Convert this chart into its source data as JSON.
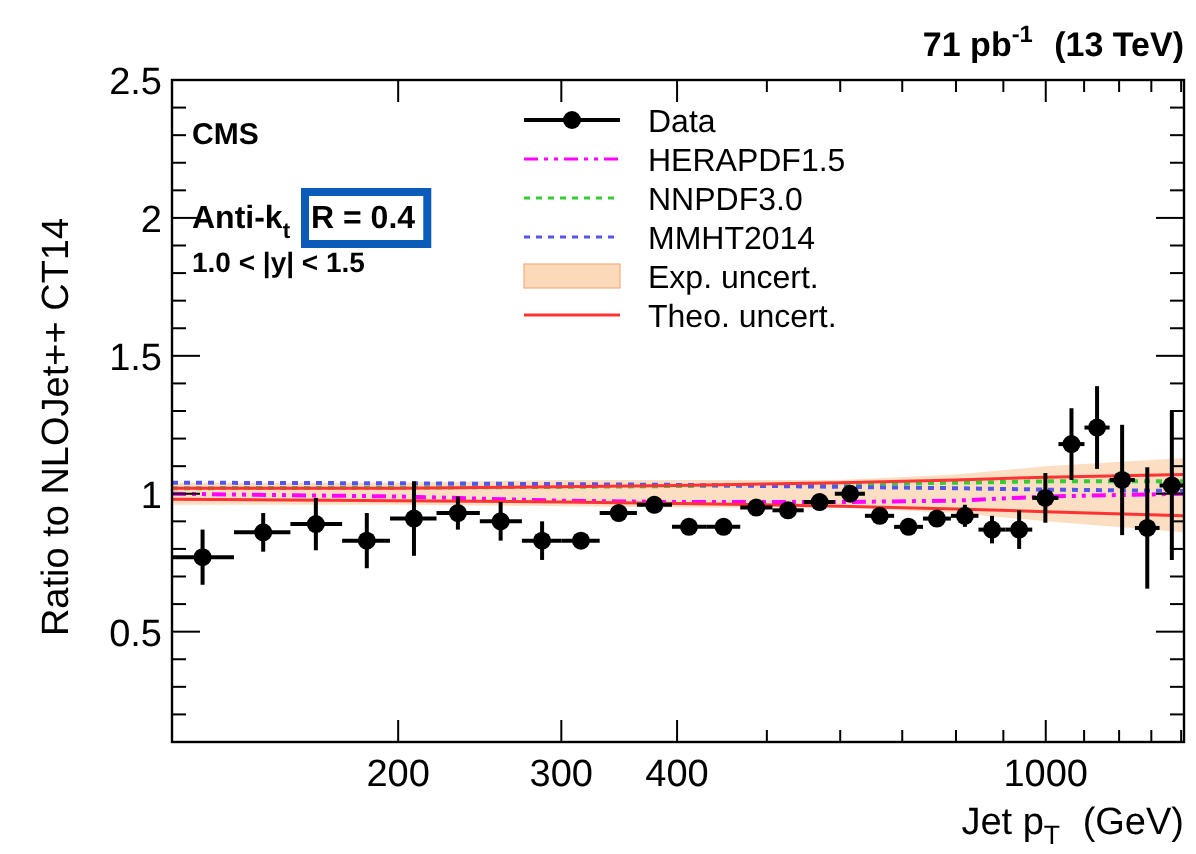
{
  "chart_data": {
    "type": "scatter",
    "title": "71 pb$^{-1}$ (13 TeV)",
    "xlabel": "Jet p$_{T}$ (GeV)",
    "ylabel": "Ratio to NLOJet++ CT14",
    "annotations": [
      "CMS",
      "Anti-k$_{t}$ R = 0.4",
      "1.0 < |y| < 1.5"
    ],
    "log": "x",
    "xlim": [
      114,
      1410
    ],
    "ylim": [
      0.1,
      2.5
    ],
    "xticks": [
      200,
      300,
      400,
      {
        "value": 500,
        "label": null
      },
      {
        "value": 600,
        "label": null
      },
      {
        "value": 700,
        "label": null
      },
      {
        "value": 800,
        "label": null
      },
      {
        "value": 900,
        "label": null
      },
      1000,
      {
        "value": 1100,
        "label": null
      },
      {
        "value": 1200,
        "label": null
      },
      {
        "value": 1300,
        "label": null
      },
      {
        "value": 1400,
        "label": null
      }
    ],
    "yticks": [
      {
        "value": 0.2,
        "label": null
      },
      {
        "value": 0.3,
        "label": null
      },
      {
        "value": 0.4,
        "label": null
      },
      0.5,
      {
        "value": 0.6,
        "label": null
      },
      {
        "value": 0.7,
        "label": null
      },
      {
        "value": 0.8,
        "label": null
      },
      {
        "value": 0.9,
        "label": null
      },
      1,
      {
        "value": 1.1,
        "label": null
      },
      {
        "value": 1.2,
        "label": null
      },
      {
        "value": 1.3,
        "label": null
      },
      {
        "value": 1.4,
        "label": null
      },
      1.5,
      {
        "value": 1.6,
        "label": null
      },
      {
        "value": 1.7,
        "label": null
      },
      {
        "value": 1.8,
        "label": null
      },
      {
        "value": 1.9,
        "label": null
      },
      2,
      {
        "value": 2.1,
        "label": null
      },
      {
        "value": 2.2,
        "label": null
      },
      {
        "value": 2.3,
        "label": null
      },
      {
        "value": 2.4,
        "label": null
      },
      2.5
    ],
    "grid": false,
    "legend": "top right",
    "series": [
      {
        "name": "Data",
        "color": "#000000",
        "marker": "circle",
        "x": [
          123,
          143,
          163,
          185,
          208,
          232,
          258,
          286,
          315,
          346,
          378,
          412,
          449,
          487,
          527,
          570,
          615,
          662,
          711,
          763,
          818,
          875,
          936,
          999,
          1066,
          1136,
          1209,
          1287,
          1368
        ],
        "values": [
          0.77,
          0.86,
          0.89,
          0.83,
          0.91,
          0.93,
          0.9,
          0.83,
          0.83,
          0.93,
          0.96,
          0.88,
          0.88,
          0.95,
          0.94,
          0.97,
          1.0,
          0.92,
          0.88,
          0.91,
          0.92,
          0.87,
          0.87,
          0.985,
          1.18,
          1.24,
          1.05,
          0.876,
          1.03
        ],
        "errors": [
          0.1,
          0.07,
          0.095,
          0.1,
          0.135,
          0.06,
          0.07,
          0.07,
          0.02,
          0.03,
          0.03,
          0.02,
          0.02,
          0.03,
          0.02,
          0.03,
          0.03,
          0.02,
          0.02,
          0.03,
          0.04,
          0.05,
          0.07,
          0.09,
          0.13,
          0.15,
          0.2,
          0.22,
          0.27
        ],
        "xerrors": [
          [
            114,
            133
          ],
          [
            133,
            153
          ],
          [
            153,
            174
          ],
          [
            174,
            196
          ],
          [
            196,
            220
          ],
          [
            220,
            245
          ],
          [
            245,
            272
          ],
          [
            272,
            300
          ],
          [
            300,
            330
          ],
          [
            330,
            362
          ],
          [
            362,
            395
          ],
          [
            395,
            430
          ],
          [
            430,
            468
          ],
          [
            468,
            507
          ],
          [
            507,
            548
          ],
          [
            548,
            592
          ],
          [
            592,
            638
          ],
          [
            638,
            686
          ],
          [
            686,
            737
          ],
          [
            737,
            790
          ],
          [
            790,
            846
          ],
          [
            846,
            905
          ],
          [
            905,
            967
          ],
          [
            967,
            1032
          ],
          [
            1032,
            1101
          ],
          [
            1101,
            1172
          ],
          [
            1172,
            1248
          ],
          [
            1248,
            1327
          ],
          [
            1327,
            1410
          ]
        ]
      },
      {
        "name": "HERAPDF1.5",
        "type": "line",
        "color": "#ff00ff",
        "line_style": "dashed",
        "x": [
          114,
          200,
          300,
          400,
          600,
          800,
          1000,
          1410
        ],
        "values": [
          1.0,
          0.99,
          0.975,
          0.97,
          0.97,
          0.975,
          0.99,
          1.0
        ]
      },
      {
        "name": "NNPDF3.0",
        "type": "line",
        "color": "#33cc33",
        "line_style": "dotted",
        "x": [
          114,
          200,
          300,
          400,
          600,
          800,
          1000,
          1410
        ],
        "values": [
          1.02,
          1.022,
          1.025,
          1.028,
          1.035,
          1.04,
          1.045,
          1.045
        ]
      },
      {
        "name": "MMHT2014",
        "type": "line",
        "color": "#5555ee",
        "line_style": "dotted",
        "x": [
          114,
          200,
          300,
          400,
          600,
          800,
          1000,
          1410
        ],
        "values": [
          1.04,
          1.038,
          1.035,
          1.032,
          1.025,
          1.02,
          1.015,
          1.01
        ]
      },
      {
        "name": "Exp. uncert.",
        "type": "area",
        "color": "#fcd9b8",
        "x": [
          114,
          200,
          300,
          400,
          600,
          800,
          1000,
          1410
        ],
        "values": [
          null,
          null,
          null,
          null,
          null,
          null,
          null,
          null
        ],
        "lower": [
          0.96,
          0.96,
          0.955,
          0.95,
          0.95,
          0.93,
          0.9,
          0.86
        ],
        "upper": [
          1.04,
          1.04,
          1.05,
          1.05,
          1.05,
          1.07,
          1.1,
          1.13
        ]
      },
      {
        "name": "Theo. uncert.",
        "type": "line",
        "color": "#ff3333",
        "line_style": "solid",
        "x": [
          114,
          200,
          300,
          400,
          600,
          800,
          1000,
          1410
        ],
        "values": [
          1.02,
          1.02,
          1.025,
          1.03,
          1.04,
          1.05,
          1.06,
          1.07
        ]
      },
      {
        "type": "line",
        "color": "#ff3333",
        "line_style": "solid",
        "x": [
          114,
          200,
          300,
          400,
          600,
          800,
          1000,
          1410
        ],
        "values": [
          0.98,
          0.975,
          0.97,
          0.965,
          0.955,
          0.945,
          0.935,
          0.92
        ]
      }
    ]
  }
}
